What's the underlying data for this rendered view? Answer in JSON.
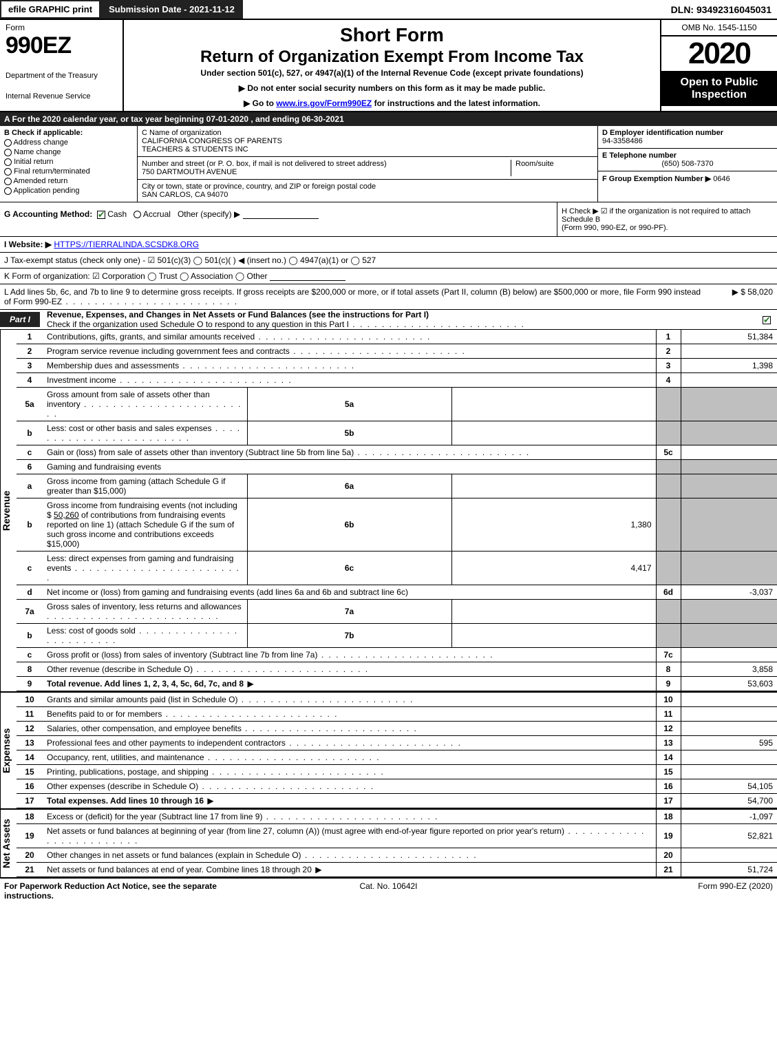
{
  "top": {
    "efile": "efile GRAPHIC print",
    "submission": "Submission Date - 2021-11-12",
    "dln": "DLN: 93492316045031"
  },
  "header": {
    "form_word": "Form",
    "form_no": "990EZ",
    "dept1": "Department of the Treasury",
    "dept2": "Internal Revenue Service",
    "title1": "Short Form",
    "title2": "Return of Organization Exempt From Income Tax",
    "subtitle": "Under section 501(c), 527, or 4947(a)(1) of the Internal Revenue Code (except private foundations)",
    "note1": "▶ Do not enter social security numbers on this form as it may be made public.",
    "note2_pre": "▶ Go to ",
    "note2_link": "www.irs.gov/Form990EZ",
    "note2_post": " for instructions and the latest information.",
    "omb": "OMB No. 1545-1150",
    "tax_year": "2020",
    "open": "Open to Public Inspection"
  },
  "rowA": "A For the 2020 calendar year, or tax year beginning 07-01-2020 , and ending 06-30-2021",
  "boxB": {
    "title": "B  Check if applicable:",
    "opts": [
      "Address change",
      "Name change",
      "Initial return",
      "Final return/terminated",
      "Amended return",
      "Application pending"
    ]
  },
  "boxC": {
    "label_name": "C Name of organization",
    "org1": "CALIFORNIA CONGRESS OF PARENTS",
    "org2": "TEACHERS & STUDENTS INC",
    "label_addr": "Number and street (or P. O. box, if mail is not delivered to street address)",
    "room_label": "Room/suite",
    "street": "750 DARTMOUTH AVENUE",
    "label_city": "City or town, state or province, country, and ZIP or foreign postal code",
    "city": "SAN CARLOS, CA  94070"
  },
  "boxD": {
    "d_label": "D Employer identification number",
    "ein": "94-3358486",
    "e_label": "E Telephone number",
    "phone": "(650) 508-7370",
    "f_label": "F Group Exemption Number  ▶",
    "f_val": "0646"
  },
  "rowG": {
    "label": "G Accounting Method:",
    "cash": "Cash",
    "accrual": "Accrual",
    "other": "Other (specify) ▶"
  },
  "rowH": {
    "line1": "H  Check ▶  ☑  if the organization is not required to attach Schedule B",
    "line2": "(Form 990, 990-EZ, or 990-PF)."
  },
  "rowI_label": "I Website: ▶",
  "rowI_url": "HTTPS://TIERRALINDA.SCSDK8.ORG",
  "rowJ": "J Tax-exempt status (check only one) -  ☑ 501(c)(3)  ◯ 501(c)(  ) ◀ (insert no.)  ◯ 4947(a)(1) or  ◯ 527",
  "rowK": "K Form of organization:   ☑ Corporation   ◯ Trust   ◯ Association   ◯ Other",
  "rowL": {
    "text": "L Add lines 5b, 6c, and 7b to line 9 to determine gross receipts. If gross receipts are $200,000 or more, or if total assets (Part II, column (B) below) are $500,000 or more, file Form 990 instead of Form 990-EZ",
    "amount": "▶ $ 58,020"
  },
  "partI": {
    "label": "Part I",
    "title": "Revenue, Expenses, and Changes in Net Assets or Fund Balances (see the instructions for Part I)",
    "sub": "Check if the organization used Schedule O to respond to any question in this Part I"
  },
  "sections": {
    "revenue_label": "Revenue",
    "expenses_label": "Expenses",
    "netassets_label": "Net Assets"
  },
  "lines": {
    "l1": {
      "n": "1",
      "t": "Contributions, gifts, grants, and similar amounts received",
      "r": "1",
      "v": "51,384"
    },
    "l2": {
      "n": "2",
      "t": "Program service revenue including government fees and contracts",
      "r": "2",
      "v": ""
    },
    "l3": {
      "n": "3",
      "t": "Membership dues and assessments",
      "r": "3",
      "v": "1,398"
    },
    "l4": {
      "n": "4",
      "t": "Investment income",
      "r": "4",
      "v": ""
    },
    "l5a": {
      "n": "5a",
      "t": "Gross amount from sale of assets other than inventory",
      "s": "5a",
      "sv": ""
    },
    "l5b": {
      "n": "b",
      "t": "Less: cost or other basis and sales expenses",
      "s": "5b",
      "sv": ""
    },
    "l5c": {
      "n": "c",
      "t": "Gain or (loss) from sale of assets other than inventory (Subtract line 5b from line 5a)",
      "r": "5c",
      "v": ""
    },
    "l6": {
      "n": "6",
      "t": "Gaming and fundraising events"
    },
    "l6a": {
      "n": "a",
      "t": "Gross income from gaming (attach Schedule G if greater than $15,000)",
      "s": "6a",
      "sv": ""
    },
    "l6b": {
      "n": "b",
      "t1": "Gross income from fundraising events (not including $ ",
      "amt": "50,260",
      "t2": " of contributions from fundraising events reported on line 1) (attach Schedule G if the sum of such gross income and contributions exceeds $15,000)",
      "s": "6b",
      "sv": "1,380"
    },
    "l6c": {
      "n": "c",
      "t": "Less: direct expenses from gaming and fundraising events",
      "s": "6c",
      "sv": "4,417"
    },
    "l6d": {
      "n": "d",
      "t": "Net income or (loss) from gaming and fundraising events (add lines 6a and 6b and subtract line 6c)",
      "r": "6d",
      "v": "-3,037"
    },
    "l7a": {
      "n": "7a",
      "t": "Gross sales of inventory, less returns and allowances",
      "s": "7a",
      "sv": ""
    },
    "l7b": {
      "n": "b",
      "t": "Less: cost of goods sold",
      "s": "7b",
      "sv": ""
    },
    "l7c": {
      "n": "c",
      "t": "Gross profit or (loss) from sales of inventory (Subtract line 7b from line 7a)",
      "r": "7c",
      "v": ""
    },
    "l8": {
      "n": "8",
      "t": "Other revenue (describe in Schedule O)",
      "r": "8",
      "v": "3,858"
    },
    "l9": {
      "n": "9",
      "t": "Total revenue. Add lines 1, 2, 3, 4, 5c, 6d, 7c, and 8",
      "r": "9",
      "v": "53,603"
    },
    "l10": {
      "n": "10",
      "t": "Grants and similar amounts paid (list in Schedule O)",
      "r": "10",
      "v": ""
    },
    "l11": {
      "n": "11",
      "t": "Benefits paid to or for members",
      "r": "11",
      "v": ""
    },
    "l12": {
      "n": "12",
      "t": "Salaries, other compensation, and employee benefits",
      "r": "12",
      "v": ""
    },
    "l13": {
      "n": "13",
      "t": "Professional fees and other payments to independent contractors",
      "r": "13",
      "v": "595"
    },
    "l14": {
      "n": "14",
      "t": "Occupancy, rent, utilities, and maintenance",
      "r": "14",
      "v": ""
    },
    "l15": {
      "n": "15",
      "t": "Printing, publications, postage, and shipping",
      "r": "15",
      "v": ""
    },
    "l16": {
      "n": "16",
      "t": "Other expenses (describe in Schedule O)",
      "r": "16",
      "v": "54,105"
    },
    "l17": {
      "n": "17",
      "t": "Total expenses. Add lines 10 through 16",
      "r": "17",
      "v": "54,700"
    },
    "l18": {
      "n": "18",
      "t": "Excess or (deficit) for the year (Subtract line 17 from line 9)",
      "r": "18",
      "v": "-1,097"
    },
    "l19": {
      "n": "19",
      "t": "Net assets or fund balances at beginning of year (from line 27, column (A)) (must agree with end-of-year figure reported on prior year's return)",
      "r": "19",
      "v": "52,821"
    },
    "l20": {
      "n": "20",
      "t": "Other changes in net assets or fund balances (explain in Schedule O)",
      "r": "20",
      "v": ""
    },
    "l21": {
      "n": "21",
      "t": "Net assets or fund balances at end of year. Combine lines 18 through 20",
      "r": "21",
      "v": "51,724"
    }
  },
  "footer": {
    "left": "For Paperwork Reduction Act Notice, see the separate instructions.",
    "center": "Cat. No. 10642I",
    "right": "Form 990-EZ (2020)"
  },
  "style": {
    "colors": {
      "header_bg": "#222222",
      "shade": "#bfbfbf",
      "check_green": "#2a7a2a",
      "link": "#0000ee"
    },
    "widths": {
      "page": 1129,
      "left_col": 180,
      "right_col": 170,
      "b_col": 200,
      "de_col": 260
    }
  }
}
